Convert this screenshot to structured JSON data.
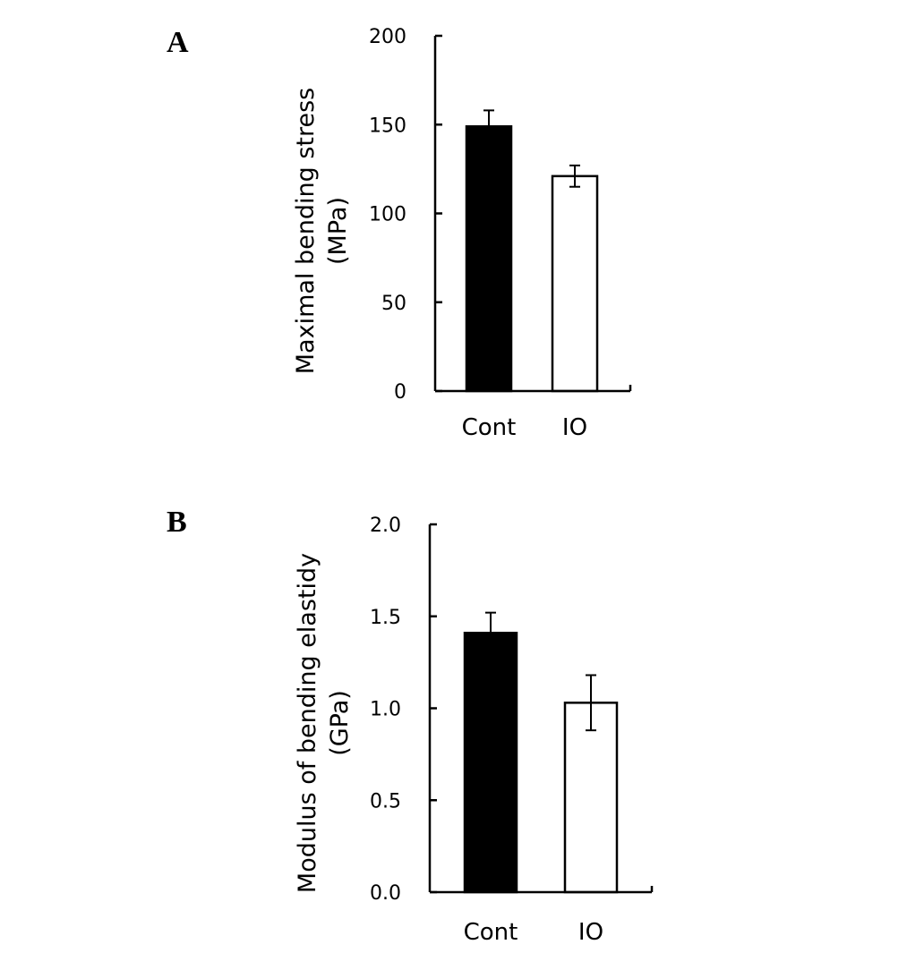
{
  "chart_data": [
    {
      "panel": "A",
      "type": "bar",
      "title": "",
      "ylabel_lines": [
        "Maximal bending stress",
        "(MPa)"
      ],
      "xlabel": "",
      "categories": [
        "Cont",
        "IO"
      ],
      "values": [
        149,
        121
      ],
      "errors": [
        9,
        6
      ],
      "bar_colors": [
        "#000000",
        "#ffffff"
      ],
      "ylim": [
        0,
        200
      ],
      "yticks": [
        0,
        50,
        100,
        150,
        200
      ],
      "ytick_labels": [
        "0",
        "50",
        "100",
        "150",
        "200"
      ],
      "grid": false,
      "legend": "none"
    },
    {
      "panel": "B",
      "type": "bar",
      "title": "",
      "ylabel_lines": [
        "Modulus of bending elastidy",
        "(GPa)"
      ],
      "xlabel": "",
      "categories": [
        "Cont",
        "IO"
      ],
      "values": [
        1.41,
        1.03
      ],
      "errors": [
        0.11,
        0.15
      ],
      "bar_colors": [
        "#000000",
        "#ffffff"
      ],
      "ylim": [
        0,
        2.0
      ],
      "yticks": [
        0,
        0.5,
        1.0,
        1.5,
        2.0
      ],
      "ytick_labels": [
        "0.0",
        "0.5",
        "1.0",
        "1.5",
        "2.0"
      ],
      "grid": false,
      "legend": "none"
    }
  ]
}
